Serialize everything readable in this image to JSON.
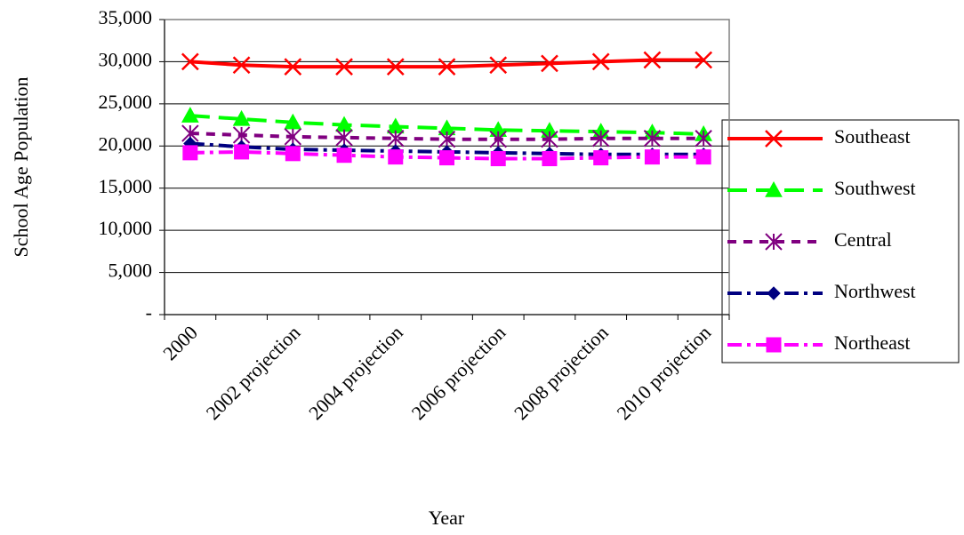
{
  "chart_data": {
    "type": "line",
    "y_label": "School Age Population",
    "x_label": "Year",
    "categories": [
      "2000",
      null,
      "2002 projection",
      null,
      "2004 projection",
      null,
      "2006 projection",
      null,
      "2008 projection",
      null,
      "2010 projection"
    ],
    "ylim": [
      0,
      35000
    ],
    "yticks": [
      {
        "value": 0,
        "label": "-"
      },
      {
        "value": 5000,
        "label": "5,000"
      },
      {
        "value": 10000,
        "label": "10,000"
      },
      {
        "value": 15000,
        "label": "15,000"
      },
      {
        "value": 20000,
        "label": "20,000"
      },
      {
        "value": 25000,
        "label": "25,000"
      },
      {
        "value": 30000,
        "label": "30,000"
      },
      {
        "value": 35000,
        "label": "35,000"
      }
    ],
    "grid": true,
    "legend": "right",
    "series": [
      {
        "name": "Southeast",
        "color": "#ff0000",
        "marker": "x",
        "line_style": "solid",
        "values": [
          30000,
          29600,
          29400,
          29400,
          29400,
          29400,
          29600,
          29800,
          30000,
          30200,
          30200
        ]
      },
      {
        "name": "Southwest",
        "color": "#00ff00",
        "marker": "triangle",
        "line_style": "long-dash",
        "values": [
          23600,
          23200,
          22800,
          22500,
          22300,
          22100,
          21900,
          21800,
          21700,
          21600,
          21400
        ]
      },
      {
        "name": "Central",
        "color": "#800080",
        "marker": "asterisk",
        "line_style": "dash",
        "values": [
          21500,
          21300,
          21100,
          21000,
          20900,
          20800,
          20800,
          20800,
          20900,
          20900,
          20900
        ]
      },
      {
        "name": "Northwest",
        "color": "#000080",
        "marker": "diamond",
        "line_style": "dash-dot",
        "values": [
          20300,
          19900,
          19600,
          19500,
          19400,
          19300,
          19200,
          19100,
          19000,
          19000,
          19000
        ]
      },
      {
        "name": "Northeast",
        "color": "#ff00ff",
        "marker": "square",
        "line_style": "dash-dot",
        "values": [
          19200,
          19300,
          19100,
          18900,
          18700,
          18600,
          18500,
          18500,
          18600,
          18700,
          18700
        ]
      }
    ]
  }
}
